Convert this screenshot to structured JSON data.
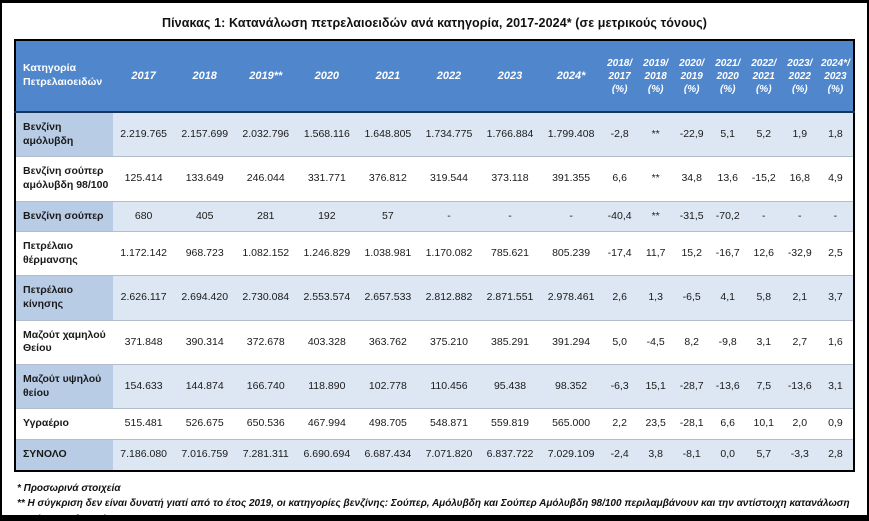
{
  "title": "Πίνακας 1: Κατανάλωση  πετρελαιοειδών ανά κατηγορία, 2017-2024* (σε μετρικούς τόνους)",
  "colors": {
    "header_bg": "#4f86cc",
    "first_col_band": "#b9cce6",
    "row_band": "#dde7f3"
  },
  "table": {
    "first_col_header": "Κατηγορία\nΠετρελαιοειδών",
    "year_headers": [
      "2017",
      "2018",
      "2019**",
      "2020",
      "2021",
      "2022",
      "2023",
      "2024*"
    ],
    "pct_headers": [
      "2018/\n2017\n(%)",
      "2019/\n2018\n(%)",
      "2020/\n2019\n(%)",
      "2021/\n2020\n(%)",
      "2022/\n2021\n(%)",
      "2023/\n2022\n(%)",
      "2024*/\n2023\n(%)"
    ],
    "rows": [
      {
        "label": "Βενζίνη αμόλυβδη",
        "values": [
          "2.219.765",
          "2.157.699",
          "2.032.796",
          "1.568.116",
          "1.648.805",
          "1.734.775",
          "1.766.884",
          "1.799.408"
        ],
        "pcts": [
          "-2,8",
          "**",
          "-22,9",
          "5,1",
          "5,2",
          "1,9",
          "1,8"
        ]
      },
      {
        "label": "Βενζίνη σούπερ αμόλυβδη 98/100",
        "values": [
          "125.414",
          "133.649",
          "246.044",
          "331.771",
          "376.812",
          "319.544",
          "373.118",
          "391.355"
        ],
        "pcts": [
          "6,6",
          "**",
          "34,8",
          "13,6",
          "-15,2",
          "16,8",
          "4,9"
        ]
      },
      {
        "label": "Βενζίνη σούπερ",
        "values": [
          "680",
          "405",
          "281",
          "192",
          "57",
          "-",
          "-",
          "-"
        ],
        "pcts": [
          "-40,4",
          "**",
          "-31,5",
          "-70,2",
          "-",
          "-",
          "-"
        ]
      },
      {
        "label": "Πετρέλαιο θέρμανσης",
        "values": [
          "1.172.142",
          "968.723",
          "1.082.152",
          "1.246.829",
          "1.038.981",
          "1.170.082",
          "785.621",
          "805.239"
        ],
        "pcts": [
          "-17,4",
          "11,7",
          "15,2",
          "-16,7",
          "12,6",
          "-32,9",
          "2,5"
        ]
      },
      {
        "label": "Πετρέλαιο κίνησης",
        "values": [
          "2.626.117",
          "2.694.420",
          "2.730.084",
          "2.553.574",
          "2.657.533",
          "2.812.882",
          "2.871.551",
          "2.978.461"
        ],
        "pcts": [
          "2,6",
          "1,3",
          "-6,5",
          "4,1",
          "5,8",
          "2,1",
          "3,7"
        ]
      },
      {
        "label": "Μαζούτ χαμηλού Θείου",
        "values": [
          "371.848",
          "390.314",
          "372.678",
          "403.328",
          "363.762",
          "375.210",
          "385.291",
          "391.294"
        ],
        "pcts": [
          "5,0",
          "-4,5",
          "8,2",
          "-9,8",
          "3,1",
          "2,7",
          "1,6"
        ]
      },
      {
        "label": "Μαζούτ υψηλού θείου",
        "values": [
          "154.633",
          "144.874",
          "166.740",
          "118.890",
          "102.778",
          "110.456",
          "95.438",
          "98.352"
        ],
        "pcts": [
          "-6,3",
          "15,1",
          "-28,7",
          "-13,6",
          "7,5",
          "-13,6",
          "3,1"
        ]
      },
      {
        "label": "Υγραέριο",
        "values": [
          "515.481",
          "526.675",
          "650.536",
          "467.994",
          "498.705",
          "548.871",
          "559.819",
          "565.000"
        ],
        "pcts": [
          "2,2",
          "23,5",
          "-28,1",
          "6,6",
          "10,1",
          "2,0",
          "0,9"
        ]
      }
    ],
    "total_row": {
      "label": "ΣΥΝΟΛΟ",
      "values": [
        "7.186.080",
        "7.016.759",
        "7.281.311",
        "6.690.694",
        "6.687.434",
        "7.071.820",
        "6.837.722",
        "7.029.109"
      ],
      "pcts": [
        "-2,4",
        "3,8",
        "-8,1",
        "0,0",
        "5,7",
        "-3,3",
        "2,8"
      ]
    }
  },
  "footnotes": [
    "* Προσωρινά στοιχεία",
    "** Η σύγκριση δεν είναι δυνατή γιατί από το έτος 2019, οι κατηγορίες βενζίνης: Σούπερ, Αμόλυβδη και Σούπερ Αμόλυβδη 98/100 περιλαμβάνουν και την αντίστοιχη κατανάλωση σε μίγμα με βιοκαύσιμο."
  ]
}
